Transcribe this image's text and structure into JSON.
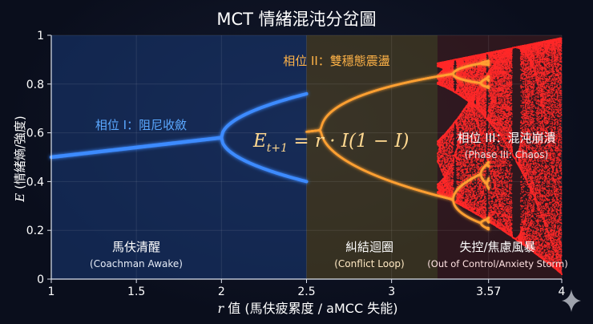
{
  "chart_data": {
    "type": "line",
    "title": "MCT 情緒混沌分岔圖",
    "xlabel_var": "r",
    "xlabel_rest": " 值 (馬伕疲累度 / aMCC 失能)",
    "ylabel_var": "E",
    "ylabel_rest": " (情緒熵/強度)",
    "xlim": [
      1,
      4
    ],
    "ylim": [
      0,
      1
    ],
    "x_ticks": [
      1,
      1.5,
      2,
      2.5,
      3,
      3.57,
      4
    ],
    "x_tick_labels": [
      "1",
      "1.5",
      "2",
      "2.5",
      "3",
      "3.57",
      "4"
    ],
    "y_ticks": [
      0,
      0.2,
      0.4,
      0.6,
      0.8,
      1
    ],
    "y_tick_labels": [
      "0",
      "0.2",
      "0.4",
      "0.6",
      "0.8",
      "1"
    ],
    "equation": {
      "lhs": "E",
      "sub": "t+1",
      "rhs": " = r · I(1 − I)"
    },
    "regions": [
      {
        "x_range": [
          1,
          2.5
        ],
        "color": "#1a3a78",
        "phase_label": "相位 I：阻尼收斂",
        "zone_label": "馬伕清醒",
        "zone_sublabel": "(Coachman Awake)"
      },
      {
        "x_range": [
          2.5,
          3.27
        ],
        "color": "#5a4a22",
        "phase_label": "相位 II：雙穩態震盪",
        "zone_label": "糾結迴圈",
        "zone_sublabel": "(Conflict Loop)"
      },
      {
        "x_range": [
          3.27,
          4
        ],
        "color": "#4a1e1e",
        "phase_label": "相位 III：混沌崩潰",
        "phase_sublabel": "(Phase III: Chaos)",
        "zone_label": "失控/焦慮風暴",
        "zone_sublabel": "(Out of Control/Anxiety Storm)"
      }
    ],
    "series": [
      {
        "x_range": [
          1,
          2.5
        ],
        "color": "#3d8bff"
      },
      {
        "x_range": [
          2.5,
          3.57
        ],
        "color": "#ffa033"
      },
      {
        "x_range": [
          3.57,
          4
        ],
        "color": "#ff2a2a"
      }
    ],
    "grid": true
  }
}
